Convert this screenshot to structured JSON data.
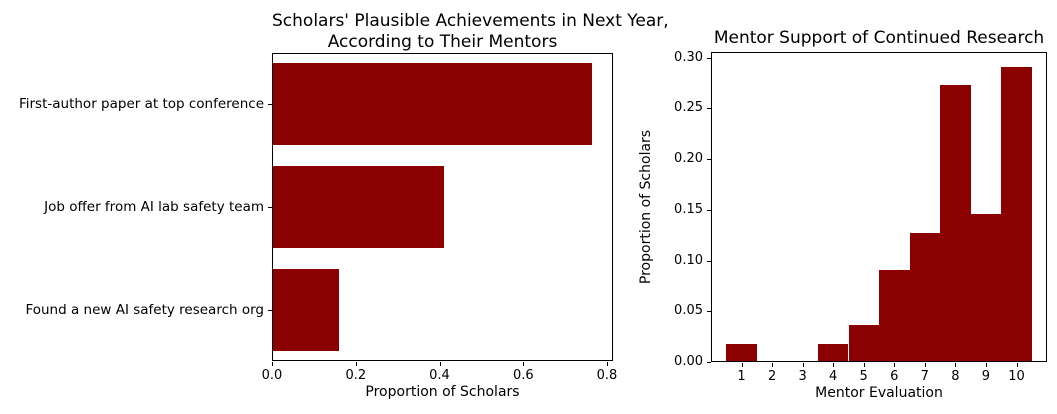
{
  "figure": {
    "background": "#ffffff",
    "bar_color": "#8b0000",
    "text_color": "#000000"
  },
  "chart_data": [
    {
      "type": "bar",
      "orientation": "horizontal",
      "title": "Scholars' Plausible Achievements in Next Year, According to Their Mentors",
      "title_lines": [
        "Scholars' Plausible Achievements in Next Year,",
        "According to Their Mentors"
      ],
      "categories": [
        "First-author paper at top conference",
        "Job offer from AI lab safety team",
        "Found a new AI safety research org"
      ],
      "values": [
        0.765,
        0.41,
        0.16
      ],
      "xlabel": "Proportion of Scholars",
      "ylabel": "",
      "xlim": [
        0,
        0.8143
      ],
      "xticks": {
        "values": [
          0,
          0.2,
          0.4,
          0.6,
          0.8
        ],
        "labels": [
          "0.0",
          "0.2",
          "0.4",
          "0.6",
          "0.8"
        ]
      },
      "bar_color": "#8b0000",
      "grid": false,
      "legend": null
    },
    {
      "type": "bar",
      "subtype": "histogram",
      "title": "Mentor Support of Continued Research",
      "xlabel": "Mentor Evaluation",
      "ylabel": "Proportion of Scholars",
      "bin_centers": [
        1,
        2,
        3,
        4,
        5,
        6,
        7,
        8,
        9,
        10
      ],
      "bin_width": 1,
      "values": [
        0.0182,
        0,
        0,
        0.0182,
        0.0364,
        0.0909,
        0.1273,
        0.2727,
        0.1455,
        0.2909
      ],
      "xlim": [
        0,
        11
      ],
      "ylim": [
        0,
        0.3055
      ],
      "xticks": {
        "values": [
          1,
          2,
          3,
          4,
          5,
          6,
          7,
          8,
          9,
          10
        ],
        "labels": [
          "1",
          "2",
          "3",
          "4",
          "5",
          "6",
          "7",
          "8",
          "9",
          "10"
        ]
      },
      "yticks": {
        "values": [
          0,
          0.05,
          0.1,
          0.15,
          0.2,
          0.25,
          0.3
        ],
        "labels": [
          "0.00",
          "0.05",
          "0.10",
          "0.15",
          "0.20",
          "0.25",
          "0.30"
        ]
      },
      "bar_color": "#8b0000",
      "grid": false,
      "legend": null
    }
  ]
}
